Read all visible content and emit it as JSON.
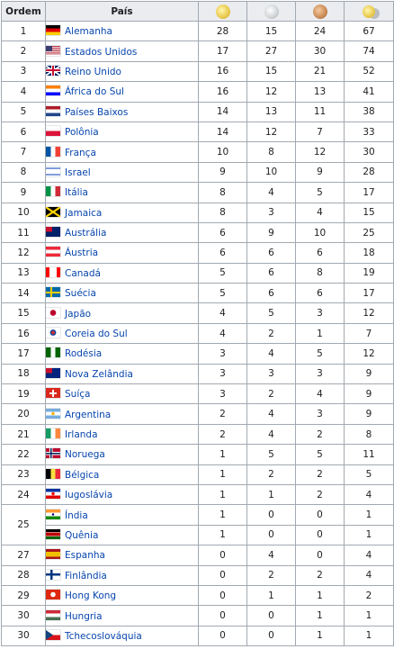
{
  "table": {
    "headers": {
      "rank": "Ordem",
      "country": "País"
    },
    "medal_icons": [
      "gold-medal-icon",
      "silver-medal-icon",
      "bronze-medal-icon",
      "total-medals-icon"
    ],
    "rows": [
      {
        "rank": "1",
        "country": "Alemanha",
        "flag": "de",
        "gold": "28",
        "silver": "15",
        "bronze": "24",
        "total": "67"
      },
      {
        "rank": "2",
        "country": "Estados Unidos",
        "flag": "us",
        "gold": "17",
        "silver": "27",
        "bronze": "30",
        "total": "74"
      },
      {
        "rank": "3",
        "country": "Reino Unido",
        "flag": "gb",
        "gold": "16",
        "silver": "15",
        "bronze": "21",
        "total": "52"
      },
      {
        "rank": "4",
        "country": "África do Sul",
        "flag": "za",
        "gold": "16",
        "silver": "12",
        "bronze": "13",
        "total": "41"
      },
      {
        "rank": "5",
        "country": "Países Baixos",
        "flag": "nl",
        "gold": "14",
        "silver": "13",
        "bronze": "11",
        "total": "38"
      },
      {
        "rank": "6",
        "country": "Polônia",
        "flag": "pl",
        "gold": "14",
        "silver": "12",
        "bronze": "7",
        "total": "33"
      },
      {
        "rank": "7",
        "country": "França",
        "flag": "fr",
        "gold": "10",
        "silver": "8",
        "bronze": "12",
        "total": "30"
      },
      {
        "rank": "8",
        "country": "Israel",
        "flag": "il",
        "gold": "9",
        "silver": "10",
        "bronze": "9",
        "total": "28"
      },
      {
        "rank": "9",
        "country": "Itália",
        "flag": "it",
        "gold": "8",
        "silver": "4",
        "bronze": "5",
        "total": "17"
      },
      {
        "rank": "10",
        "country": "Jamaica",
        "flag": "jm",
        "gold": "8",
        "silver": "3",
        "bronze": "4",
        "total": "15"
      },
      {
        "rank": "11",
        "country": "Austrália",
        "flag": "au",
        "gold": "6",
        "silver": "9",
        "bronze": "10",
        "total": "25"
      },
      {
        "rank": "12",
        "country": "Áustria",
        "flag": "at",
        "gold": "6",
        "silver": "6",
        "bronze": "6",
        "total": "18"
      },
      {
        "rank": "13",
        "country": "Canadá",
        "flag": "ca",
        "gold": "5",
        "silver": "6",
        "bronze": "8",
        "total": "19"
      },
      {
        "rank": "14",
        "country": "Suécia",
        "flag": "se",
        "gold": "5",
        "silver": "6",
        "bronze": "6",
        "total": "17"
      },
      {
        "rank": "15",
        "country": "Japão",
        "flag": "jp",
        "gold": "4",
        "silver": "5",
        "bronze": "3",
        "total": "12"
      },
      {
        "rank": "16",
        "country": "Coreia do Sul",
        "flag": "kr",
        "gold": "4",
        "silver": "2",
        "bronze": "1",
        "total": "7"
      },
      {
        "rank": "17",
        "country": "Rodésia",
        "flag": "rh",
        "gold": "3",
        "silver": "4",
        "bronze": "5",
        "total": "12"
      },
      {
        "rank": "18",
        "country": "Nova Zelândia",
        "flag": "nz",
        "gold": "3",
        "silver": "3",
        "bronze": "3",
        "total": "9"
      },
      {
        "rank": "19",
        "country": "Suíça",
        "flag": "ch",
        "gold": "3",
        "silver": "2",
        "bronze": "4",
        "total": "9"
      },
      {
        "rank": "20",
        "country": "Argentina",
        "flag": "ar",
        "gold": "2",
        "silver": "4",
        "bronze": "3",
        "total": "9"
      },
      {
        "rank": "21",
        "country": "Irlanda",
        "flag": "ie",
        "gold": "2",
        "silver": "4",
        "bronze": "2",
        "total": "8"
      },
      {
        "rank": "22",
        "country": "Noruega",
        "flag": "no",
        "gold": "1",
        "silver": "5",
        "bronze": "5",
        "total": "11"
      },
      {
        "rank": "23",
        "country": "Bélgica",
        "flag": "be",
        "gold": "1",
        "silver": "2",
        "bronze": "2",
        "total": "5"
      },
      {
        "rank": "24",
        "country": "Iugoslávia",
        "flag": "yu",
        "gold": "1",
        "silver": "1",
        "bronze": "2",
        "total": "4"
      },
      {
        "rank": "25",
        "country": "Índia",
        "flag": "in",
        "gold": "1",
        "silver": "0",
        "bronze": "0",
        "total": "1",
        "rowspan": 2
      },
      {
        "rank": "",
        "country": "Quênia",
        "flag": "ke",
        "gold": "1",
        "silver": "0",
        "bronze": "0",
        "total": "1",
        "skip_rank": true
      },
      {
        "rank": "27",
        "country": "Espanha",
        "flag": "es",
        "gold": "0",
        "silver": "4",
        "bronze": "0",
        "total": "4"
      },
      {
        "rank": "28",
        "country": "Finlândia",
        "flag": "fi",
        "gold": "0",
        "silver": "2",
        "bronze": "2",
        "total": "4"
      },
      {
        "rank": "29",
        "country": "Hong Kong",
        "flag": "hk",
        "gold": "0",
        "silver": "1",
        "bronze": "1",
        "total": "2"
      },
      {
        "rank": "30",
        "country": "Hungria",
        "flag": "hu",
        "gold": "0",
        "silver": "0",
        "bronze": "1",
        "total": "1"
      },
      {
        "rank": "30",
        "country": "Tchecoslováquia",
        "flag": "cz",
        "gold": "0",
        "silver": "0",
        "bronze": "1",
        "total": "1"
      }
    ]
  }
}
